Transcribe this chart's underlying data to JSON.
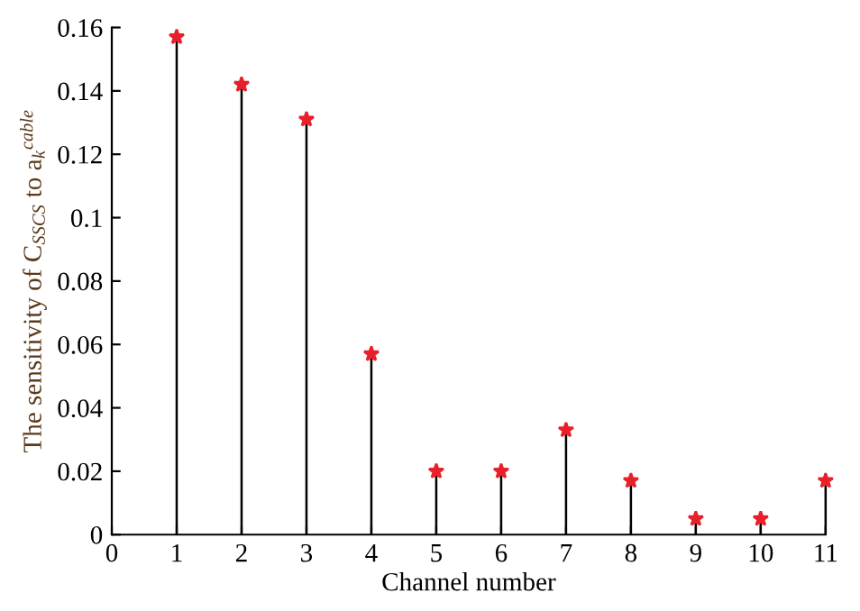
{
  "chart_data": {
    "type": "lollipop",
    "xlabel": "Channel number",
    "ylabel": "The sensitivity of C$_{SSCS}$ to a$_{k}$$^{cable}$",
    "x": [
      1,
      2,
      3,
      4,
      5,
      6,
      7,
      8,
      9,
      10,
      11
    ],
    "series": [
      {
        "color": "#e8202a",
        "values": [
          0.157,
          0.142,
          0.131,
          0.057,
          0.02,
          0.02,
          0.033,
          0.017,
          0.005,
          0.005,
          0.017
        ]
      }
    ],
    "xlim": [
      0,
      11
    ],
    "xticks": [
      0,
      1,
      2,
      3,
      4,
      5,
      6,
      7,
      8,
      9,
      10,
      11
    ],
    "ylim": [
      0,
      0.16
    ],
    "yticks": [
      0,
      0.02,
      0.04,
      0.06,
      0.08,
      0.1,
      0.12,
      0.14,
      0.16
    ],
    "marker": "star",
    "grid": false,
    "legend": false
  }
}
